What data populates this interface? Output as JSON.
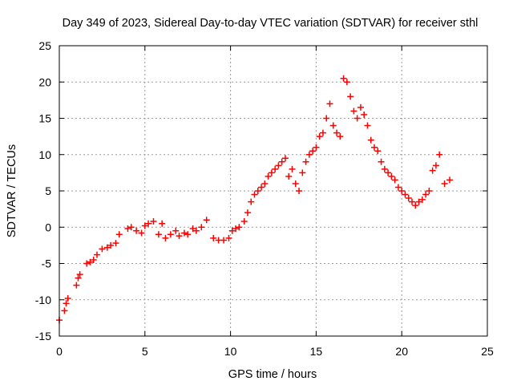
{
  "chart_data": {
    "type": "scatter",
    "title": "Day 349 of 2023, Sidereal Day-to-day VTEC variation (SDTVAR) for receiver sthl",
    "xlabel": "GPS time / hours",
    "ylabel": "SDTVAR / TECUs",
    "xlim": [
      0,
      25
    ],
    "ylim": [
      -15,
      25
    ],
    "xticks": [
      0,
      5,
      10,
      15,
      20,
      25
    ],
    "yticks": [
      -15,
      -10,
      -5,
      0,
      5,
      10,
      15,
      20,
      25
    ],
    "grid": true,
    "marker": "+",
    "color": "#ff0000",
    "series": [
      {
        "name": "SDTVAR",
        "x": [
          0.0,
          0.3,
          0.4,
          0.5,
          1.0,
          1.1,
          1.2,
          1.6,
          1.8,
          2.0,
          2.2,
          2.5,
          2.8,
          3.0,
          3.3,
          3.5,
          4.0,
          4.2,
          4.5,
          4.8,
          5.0,
          5.2,
          5.5,
          5.8,
          6.0,
          6.2,
          6.5,
          6.8,
          7.0,
          7.3,
          7.5,
          7.8,
          8.0,
          8.3,
          8.6,
          9.0,
          9.3,
          9.6,
          9.9,
          10.1,
          10.3,
          10.5,
          10.8,
          11.0,
          11.2,
          11.4,
          11.6,
          11.8,
          12.0,
          12.2,
          12.4,
          12.6,
          12.8,
          13.0,
          13.2,
          13.4,
          13.6,
          13.8,
          14.0,
          14.2,
          14.4,
          14.6,
          14.8,
          15.0,
          15.2,
          15.4,
          15.6,
          15.8,
          16.0,
          16.2,
          16.4,
          16.6,
          16.8,
          17.0,
          17.2,
          17.4,
          17.6,
          17.8,
          18.0,
          18.2,
          18.4,
          18.6,
          18.8,
          19.0,
          19.2,
          19.4,
          19.6,
          19.8,
          20.0,
          20.2,
          20.4,
          20.6,
          20.8,
          21.0,
          21.2,
          21.4,
          21.6,
          21.8,
          22.0,
          22.2,
          22.5,
          22.8
        ],
        "y": [
          -12.8,
          -11.5,
          -10.5,
          -9.8,
          -8.0,
          -7.0,
          -6.5,
          -5.0,
          -4.8,
          -4.5,
          -3.8,
          -3.0,
          -2.8,
          -2.5,
          -2.2,
          -1.0,
          -0.2,
          0.0,
          -0.5,
          -0.8,
          0.2,
          0.5,
          0.8,
          -1.0,
          0.5,
          -1.5,
          -1.0,
          -0.5,
          -1.2,
          -0.8,
          -1.0,
          -0.2,
          -0.5,
          0.0,
          1.0,
          -1.5,
          -1.8,
          -1.8,
          -1.5,
          -0.5,
          -0.2,
          0.0,
          0.8,
          2.0,
          3.5,
          4.5,
          5.0,
          5.5,
          6.0,
          7.0,
          7.5,
          8.0,
          8.5,
          9.0,
          9.5,
          7.0,
          8.0,
          6.0,
          5.0,
          7.5,
          9.0,
          10.0,
          10.5,
          11.0,
          12.5,
          13.0,
          15.0,
          17.0,
          14.0,
          13.0,
          12.5,
          20.5,
          20.0,
          18.0,
          16.0,
          15.0,
          16.5,
          15.5,
          14.0,
          12.0,
          11.0,
          10.5,
          9.0,
          8.0,
          7.5,
          7.0,
          6.5,
          5.5,
          5.0,
          4.5,
          4.0,
          3.5,
          3.0,
          3.5,
          3.8,
          4.5,
          5.0,
          7.8,
          8.5,
          10.0,
          6.0,
          6.5
        ]
      }
    ]
  }
}
